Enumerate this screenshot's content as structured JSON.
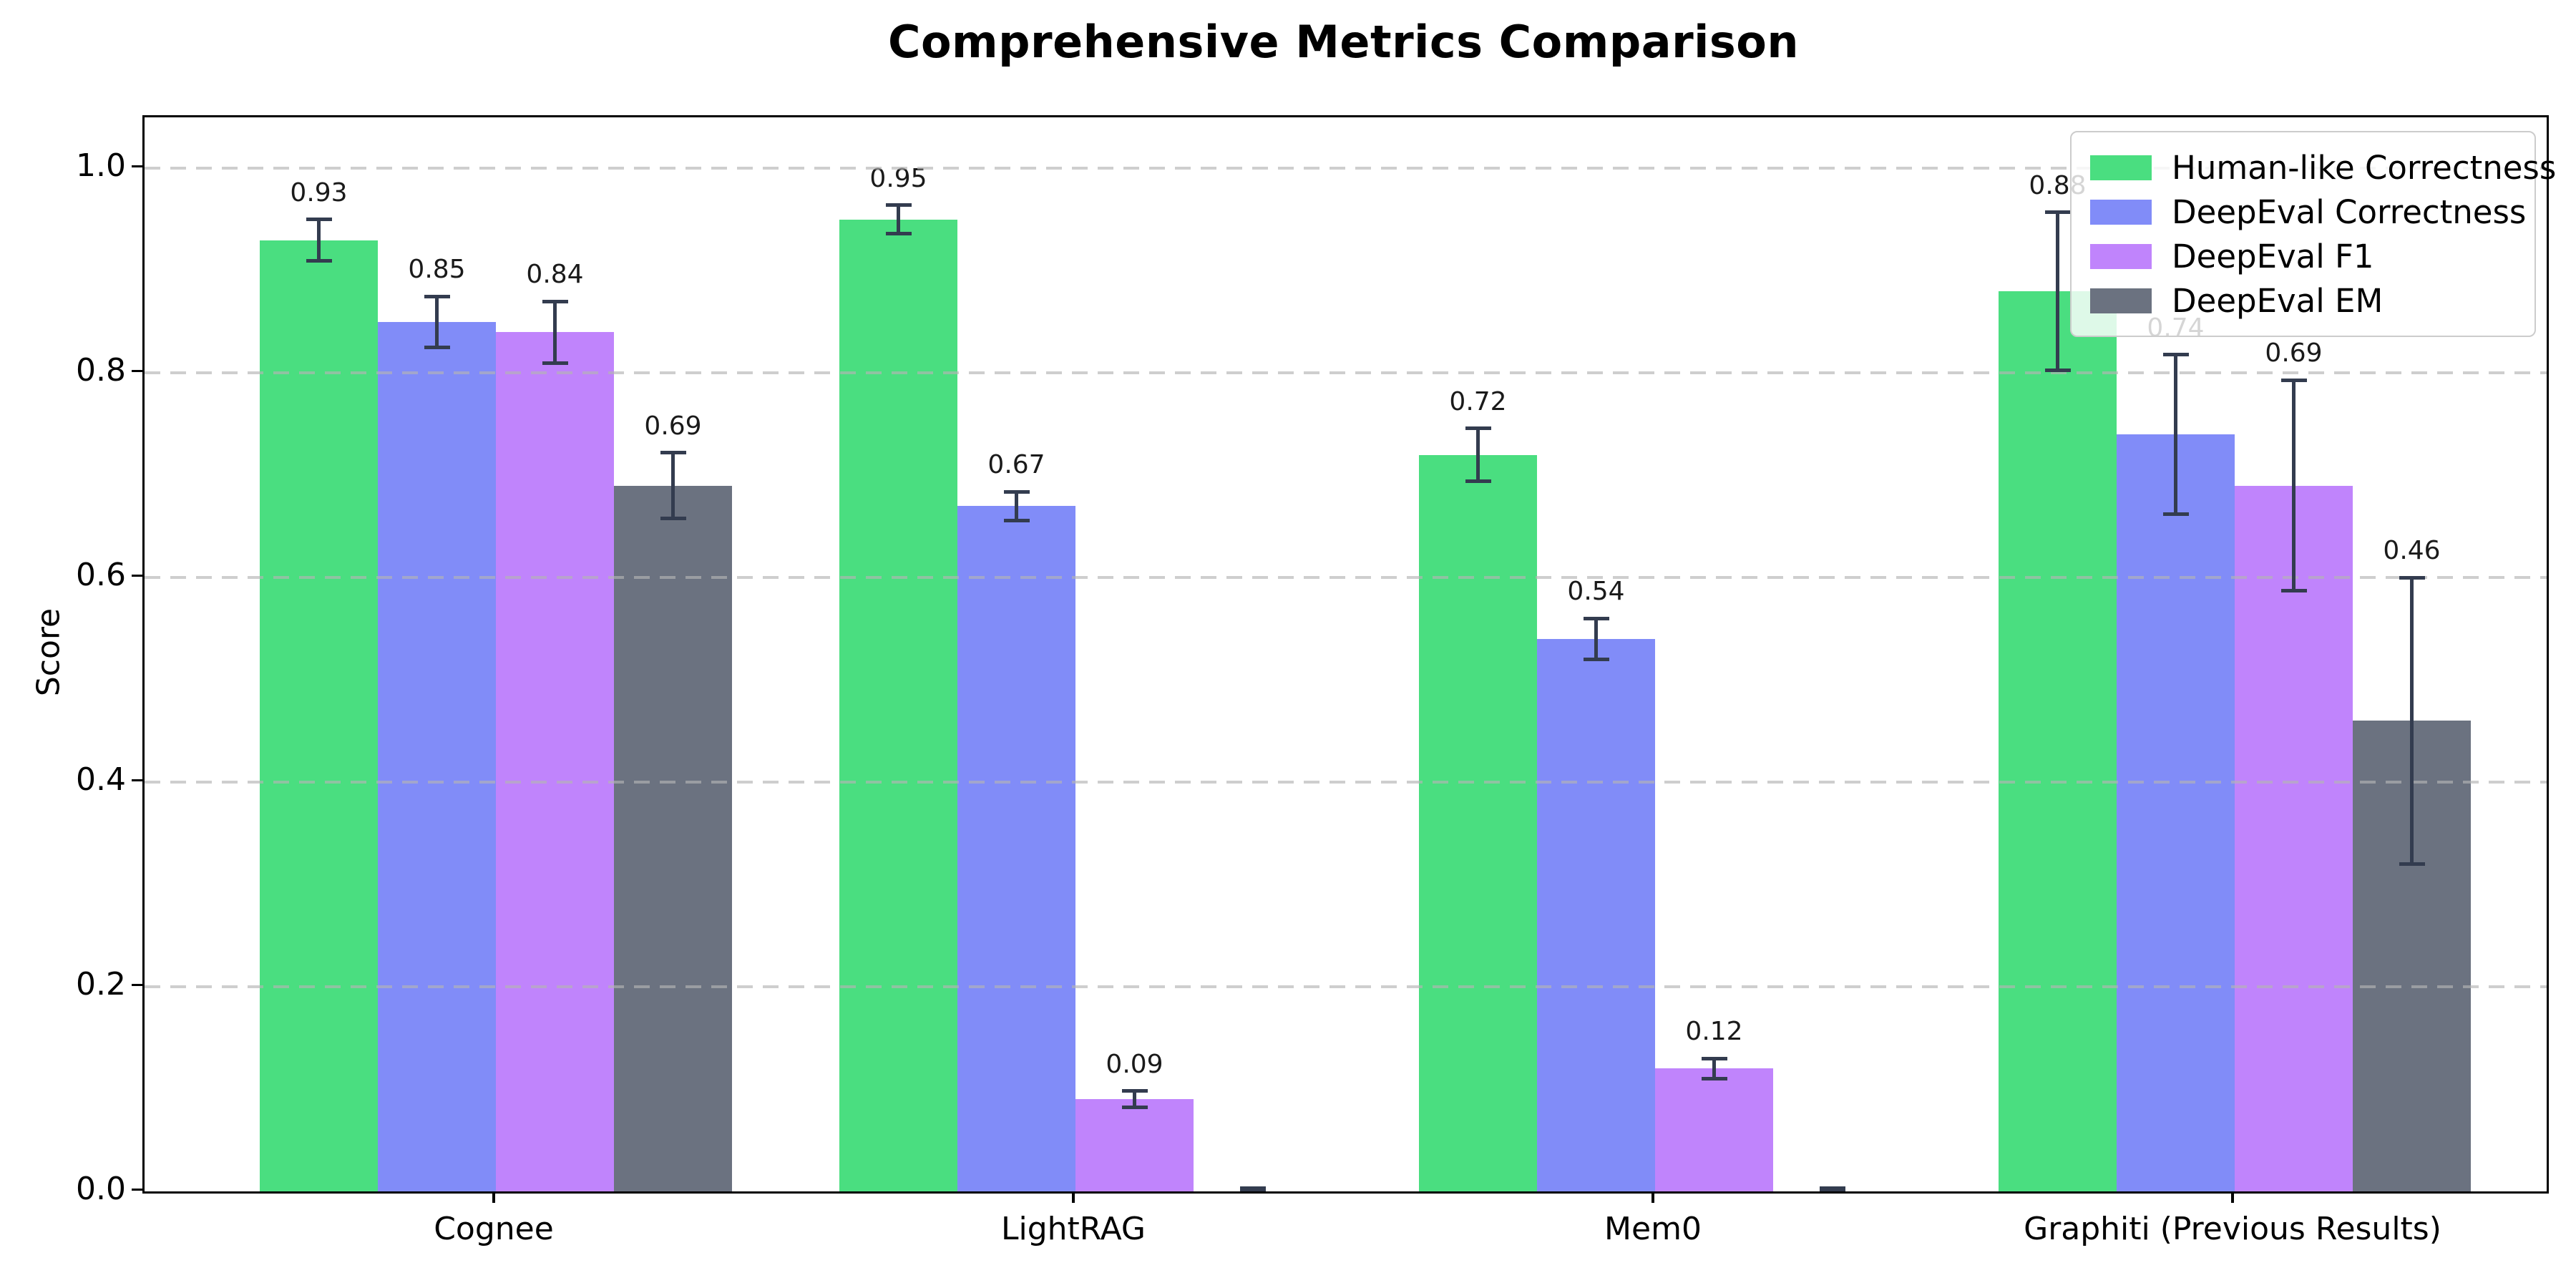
{
  "figure": {
    "title": "Comprehensive Metrics Comparison"
  },
  "chart_data": {
    "type": "bar",
    "title": "Comprehensive Metrics Comparison",
    "xlabel": "",
    "ylabel": "Score",
    "categories": [
      "Cognee",
      "LightRAG",
      "Mem0",
      "Graphiti (Previous Results)"
    ],
    "series": [
      {
        "name": "Human-like Correctness",
        "color": "#4ade80",
        "values": [
          0.93,
          0.95,
          0.72,
          0.88
        ],
        "errors": [
          0.02,
          0.014,
          0.026,
          0.077
        ],
        "labels": [
          "0.93",
          "0.95",
          "0.72",
          "0.88"
        ]
      },
      {
        "name": "DeepEval Correctness",
        "color": "#818cf8",
        "values": [
          0.85,
          0.67,
          0.54,
          0.74
        ],
        "errors": [
          0.025,
          0.014,
          0.02,
          0.078
        ],
        "labels": [
          "0.85",
          "0.67",
          "0.54",
          "0.74"
        ]
      },
      {
        "name": "DeepEval F1",
        "color": "#c084fc",
        "values": [
          0.84,
          0.09,
          0.12,
          0.69
        ],
        "errors": [
          0.03,
          0.008,
          0.01,
          0.103
        ],
        "labels": [
          "0.84",
          "0.09",
          "0.12",
          "0.69"
        ]
      },
      {
        "name": "DeepEval EM",
        "color": "#6b7280",
        "values": [
          0.69,
          0.0,
          0.0,
          0.46
        ],
        "errors": [
          0.032,
          0.003,
          0.003,
          0.14
        ],
        "labels": [
          "0.69",
          "",
          "",
          "0.46"
        ]
      }
    ],
    "yticks": [
      "0.0",
      "0.2",
      "0.4",
      "0.6",
      "0.8",
      "1.0"
    ],
    "ylim": [
      0,
      1.05
    ],
    "grid": "horizontal-dashed",
    "grid_color": "#cccccc",
    "legend_position": "upper-right",
    "error_bar_color": "#333c4f",
    "axis_color": "#000000"
  }
}
